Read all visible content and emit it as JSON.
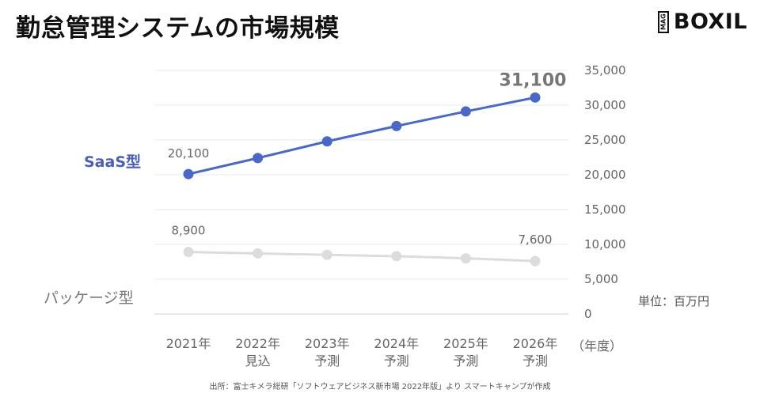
{
  "title": "勤怠管理システムの市場規模",
  "logo": {
    "mag": "MAG",
    "word": "BOXIL"
  },
  "unit": "単位：百万円",
  "year_unit": "（年度）",
  "source": "出所：富士キメラ総研「ソフトウェアビジネス新市場 2022年版」より スマートキャンプが作成",
  "colors": {
    "saas": "#4a69c6",
    "package": "#dcdcdc",
    "grid": "#e8e8e8"
  },
  "chart_data": {
    "type": "line",
    "categories": [
      [
        "2021年",
        ""
      ],
      [
        "2022年",
        "見込"
      ],
      [
        "2023年",
        "予測"
      ],
      [
        "2024年",
        "予測"
      ],
      [
        "2025年",
        "予測"
      ],
      [
        "2026年",
        "予測"
      ]
    ],
    "series": [
      {
        "name": "SaaS型",
        "values": [
          20100,
          22400,
          24800,
          27000,
          29100,
          31100
        ],
        "labels": [
          "20,100",
          "",
          "",
          "",
          "",
          "31,100"
        ]
      },
      {
        "name": "パッケージ型",
        "values": [
          8900,
          8700,
          8500,
          8300,
          8000,
          7600
        ],
        "labels": [
          "8,900",
          "",
          "",
          "",
          "",
          "7,600"
        ]
      }
    ],
    "ylim": [
      0,
      35000
    ],
    "yticks": [
      "0",
      "5,000",
      "10,000",
      "15,000",
      "20,000",
      "25,000",
      "30,000",
      "35,000"
    ],
    "ytick_values": [
      0,
      5000,
      10000,
      15000,
      20000,
      25000,
      30000,
      35000
    ],
    "grid": true,
    "y_axis_side": "right"
  }
}
